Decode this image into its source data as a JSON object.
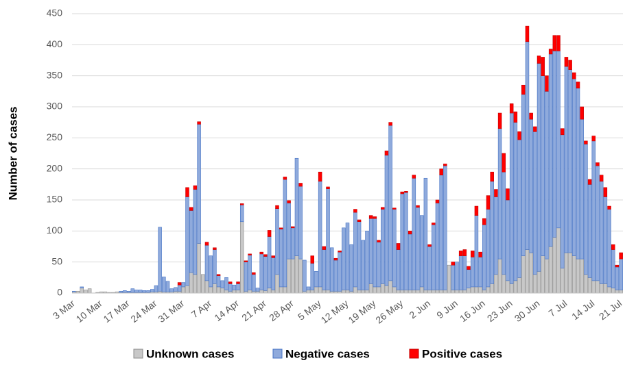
{
  "chart_data": {
    "type": "stacked-bar",
    "y_label": "Number of cases",
    "categories": [
      "3 Mar",
      null,
      null,
      null,
      null,
      null,
      null,
      "10 Mar",
      null,
      null,
      null,
      null,
      null,
      null,
      "17 Mar",
      null,
      null,
      null,
      null,
      null,
      null,
      "24 Mar",
      null,
      null,
      null,
      null,
      null,
      null,
      "31 Mar",
      null,
      null,
      null,
      null,
      null,
      null,
      "7 Apr",
      null,
      null,
      null,
      null,
      null,
      null,
      "14 Apr",
      null,
      null,
      null,
      null,
      null,
      null,
      "21 Apr",
      null,
      null,
      null,
      null,
      null,
      null,
      "28 Apr",
      null,
      null,
      null,
      null,
      null,
      null,
      "5 May",
      null,
      null,
      null,
      null,
      null,
      null,
      "12 May",
      null,
      null,
      null,
      null,
      null,
      null,
      "19 May",
      null,
      null,
      null,
      null,
      null,
      null,
      "26 May",
      null,
      null,
      null,
      null,
      null,
      null,
      "2 Jun",
      null,
      null,
      null,
      null,
      null,
      null,
      "9 Jun",
      null,
      null,
      null,
      null,
      null,
      null,
      "16 Jun",
      null,
      null,
      null,
      null,
      null,
      null,
      "23 Jun",
      null,
      null,
      null,
      null,
      null,
      null,
      "30 Jun",
      null,
      null,
      null,
      null,
      null,
      null,
      "7 Jul",
      null,
      null,
      null,
      null,
      null,
      null,
      "14 Jul",
      null,
      null,
      null,
      null,
      null,
      null,
      "21 Jul"
    ],
    "series": [
      {
        "name": "Unknown cases",
        "color": "#c8c8c8",
        "stroke": "#8c8c8c",
        "values": [
          2,
          3,
          8,
          5,
          7,
          0,
          1,
          2,
          2,
          1,
          1,
          2,
          1,
          1,
          1,
          1,
          1,
          1,
          1,
          1,
          2,
          2,
          3,
          2,
          2,
          2,
          3,
          3,
          10,
          12,
          33,
          30,
          80,
          30,
          20,
          10,
          15,
          10,
          8,
          5,
          3,
          5,
          5,
          115,
          3,
          5,
          3,
          3,
          5,
          4,
          8,
          5,
          30,
          10,
          10,
          55,
          55,
          60,
          55,
          3,
          5,
          5,
          10,
          10,
          5,
          5,
          3,
          3,
          3,
          5,
          5,
          3,
          10,
          5,
          5,
          5,
          15,
          10,
          10,
          15,
          12,
          20,
          10,
          5,
          5,
          5,
          5,
          5,
          5,
          10,
          5,
          5,
          5,
          5,
          5,
          5,
          45,
          5,
          5,
          5,
          5,
          8,
          10,
          10,
          10,
          5,
          10,
          15,
          30,
          55,
          30,
          20,
          15,
          20,
          25,
          60,
          70,
          65,
          30,
          35,
          60,
          55,
          75,
          90,
          105,
          40,
          65,
          65,
          60,
          55,
          55,
          30,
          25,
          20,
          20,
          15,
          15,
          10,
          8,
          5,
          5
        ]
      },
      {
        "name": "Negative cases",
        "color": "#8faadc",
        "stroke": "#4472c4",
        "values": [
          1,
          0,
          2,
          0,
          0,
          0,
          0,
          0,
          0,
          0,
          0,
          0,
          2,
          3,
          2,
          6,
          4,
          4,
          3,
          3,
          4,
          10,
          103,
          24,
          17,
          5,
          6,
          10,
          7,
          143,
          100,
          137,
          192,
          0,
          57,
          50,
          55,
          18,
          12,
          20,
          12,
          8,
          10,
          27,
          47,
          56,
          27,
          5,
          58,
          55,
          83,
          52,
          106,
          93,
          173,
          90,
          50,
          157,
          117,
          50,
          5,
          43,
          25,
          170,
          65,
          163,
          70,
          50,
          63,
          100,
          108,
          75,
          120,
          110,
          80,
          95,
          105,
          110,
          72,
          120,
          210,
          250,
          125,
          65,
          155,
          157,
          90,
          180,
          133,
          115,
          180,
          70,
          105,
          140,
          185,
          200,
          0,
          40,
          45,
          55,
          55,
          30,
          48,
          115,
          48,
          105,
          125,
          165,
          125,
          210,
          165,
          130,
          275,
          255,
          222,
          260,
          335,
          215,
          230,
          335,
          290,
          270,
          310,
          300,
          285,
          215,
          300,
          295,
          285,
          275,
          225,
          210,
          150,
          225,
          185,
          165,
          140,
          125,
          62,
          37,
          50
        ]
      },
      {
        "name": "Positive cases",
        "color": "#ff0000",
        "stroke": "#c00000",
        "values": [
          0,
          0,
          0,
          0,
          0,
          0,
          0,
          0,
          0,
          0,
          0,
          0,
          0,
          0,
          0,
          0,
          0,
          0,
          0,
          0,
          0,
          0,
          0,
          0,
          0,
          0,
          0,
          4,
          0,
          15,
          5,
          6,
          4,
          0,
          5,
          0,
          3,
          2,
          0,
          0,
          3,
          0,
          3,
          2,
          2,
          2,
          3,
          0,
          3,
          3,
          10,
          3,
          5,
          2,
          4,
          4,
          2,
          0,
          5,
          0,
          0,
          12,
          0,
          15,
          5,
          3,
          0,
          3,
          2,
          0,
          0,
          0,
          5,
          3,
          0,
          0,
          5,
          3,
          3,
          3,
          7,
          5,
          2,
          10,
          3,
          2,
          5,
          5,
          3,
          0,
          0,
          3,
          3,
          5,
          10,
          3,
          0,
          5,
          0,
          8,
          10,
          5,
          10,
          15,
          8,
          10,
          22,
          15,
          12,
          25,
          30,
          18,
          15,
          17,
          13,
          15,
          25,
          10,
          8,
          12,
          30,
          25,
          8,
          25,
          25,
          10,
          15,
          15,
          10,
          10,
          20,
          5,
          8,
          8,
          5,
          10,
          15,
          5,
          8,
          3,
          10
        ]
      }
    ],
    "ylim": [
      0,
      450
    ],
    "yticks": [
      0,
      50,
      100,
      150,
      200,
      250,
      300,
      350,
      400,
      450
    ],
    "grid": true,
    "legend": "bottom"
  }
}
